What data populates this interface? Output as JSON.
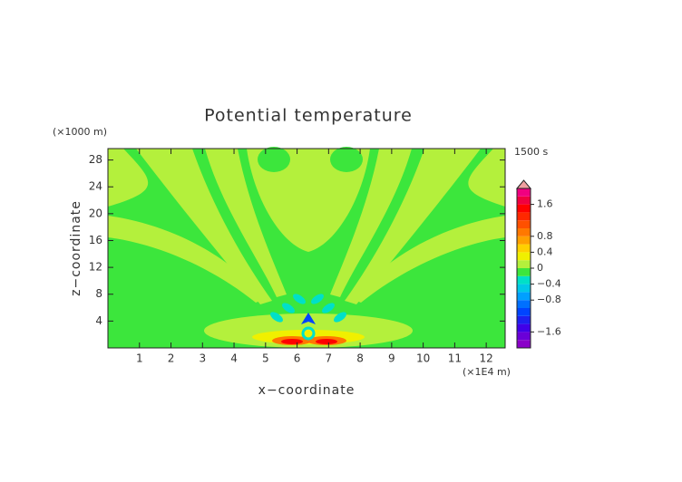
{
  "chart_data": {
    "type": "contour",
    "title": "Potential temperature",
    "time_label": "1500 s",
    "x_label": "x−coordinate",
    "y_label": "z−coordinate",
    "x_unit": "(×1E4 m)",
    "y_unit": "(×1000 m)",
    "xlim": [
      0,
      12.6
    ],
    "ylim": [
      0,
      29.7
    ],
    "xticks": [
      1,
      2,
      3,
      4,
      5,
      6,
      7,
      8,
      9,
      10,
      11,
      12
    ],
    "yticks": [
      4,
      8,
      12,
      16,
      20,
      24,
      28
    ],
    "colorbar": {
      "levels": [
        -2,
        -1.8,
        -1.6,
        -1.4,
        -1.2,
        -1,
        -0.8,
        -0.6,
        -0.4,
        -0.2,
        0,
        0.2,
        0.4,
        0.6,
        0.8,
        1,
        1.2,
        1.4,
        1.6,
        1.8,
        2
      ],
      "colors": [
        "#8a00c8",
        "#6a00d8",
        "#4000e8",
        "#1e20f0",
        "#0044ff",
        "#0070ff",
        "#00a0ff",
        "#00c8e8",
        "#00e0c8",
        "#3ce63c",
        "#b4f03c",
        "#f0f000",
        "#ffd000",
        "#ffa000",
        "#ff7800",
        "#ff5000",
        "#ff2800",
        "#ff0000",
        "#f00040",
        "#f00080"
      ],
      "extend_color": "#f0a0a0",
      "ticks": [
        {
          "value": 1.6,
          "label": "1.6"
        },
        {
          "value": 0.8,
          "label": "0.8"
        },
        {
          "value": 0.4,
          "label": "0.4"
        },
        0,
        {
          "value": -0.4,
          "label": "−0.4"
        },
        {
          "value": -0.8,
          "label": "−0.8"
        },
        {
          "value": -1.6,
          "label": "−1.6"
        }
      ]
    }
  }
}
